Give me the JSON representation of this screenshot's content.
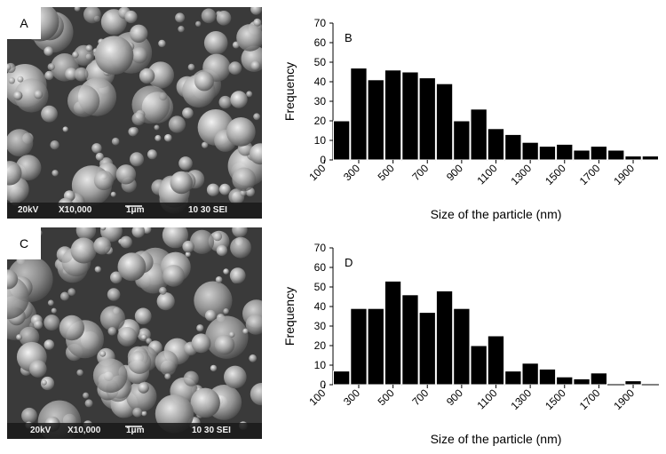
{
  "panels": [
    {
      "label": "A",
      "type": "sem-micrograph",
      "info": {
        "voltage": "20kV",
        "magnification": "X10,000",
        "scale": "1μm",
        "code": "10 30 SEI"
      }
    },
    {
      "label": "C",
      "type": "sem-micrograph",
      "info": {
        "voltage": "20kV",
        "magnification": "X10,000",
        "scale": "1μm",
        "code": "10 30 SEI"
      }
    }
  ],
  "chart_data": [
    {
      "type": "bar",
      "panel_label": "B",
      "xlabel": "Size of the particle (nm)",
      "ylabel": "Frequency",
      "ylim": [
        0,
        70
      ],
      "yticks": [
        0,
        10,
        20,
        30,
        40,
        50,
        60,
        70
      ],
      "xtick_labels": [
        "100",
        "300",
        "500",
        "700",
        "900",
        "1100",
        "1300",
        "1500",
        "1700",
        "1900"
      ],
      "categories": [
        200,
        300,
        400,
        500,
        600,
        700,
        800,
        900,
        1000,
        1100,
        1200,
        1300,
        1400,
        1500,
        1600,
        1700,
        1800,
        1900,
        2000
      ],
      "values": [
        20,
        47,
        41,
        46,
        45,
        42,
        39,
        20,
        26,
        16,
        13,
        9,
        7,
        8,
        5,
        7,
        5,
        2,
        2
      ],
      "bar_color": "#000000",
      "grid": false
    },
    {
      "type": "bar",
      "panel_label": "D",
      "xlabel": "Size of the particle (nm)",
      "ylabel": "Frequency",
      "ylim": [
        0,
        70
      ],
      "yticks": [
        0,
        10,
        20,
        30,
        40,
        50,
        60,
        70
      ],
      "xtick_labels": [
        "100",
        "300",
        "500",
        "700",
        "900",
        "1100",
        "1300",
        "1500",
        "1700",
        "1900"
      ],
      "categories": [
        200,
        300,
        400,
        500,
        600,
        700,
        800,
        900,
        1000,
        1100,
        1200,
        1300,
        1400,
        1500,
        1600,
        1700,
        1800,
        1900,
        2000
      ],
      "values": [
        7,
        39,
        39,
        53,
        46,
        37,
        48,
        39,
        20,
        25,
        7,
        11,
        8,
        4,
        3,
        6,
        0,
        2,
        0
      ],
      "bar_color": "#000000",
      "grid": false
    }
  ]
}
